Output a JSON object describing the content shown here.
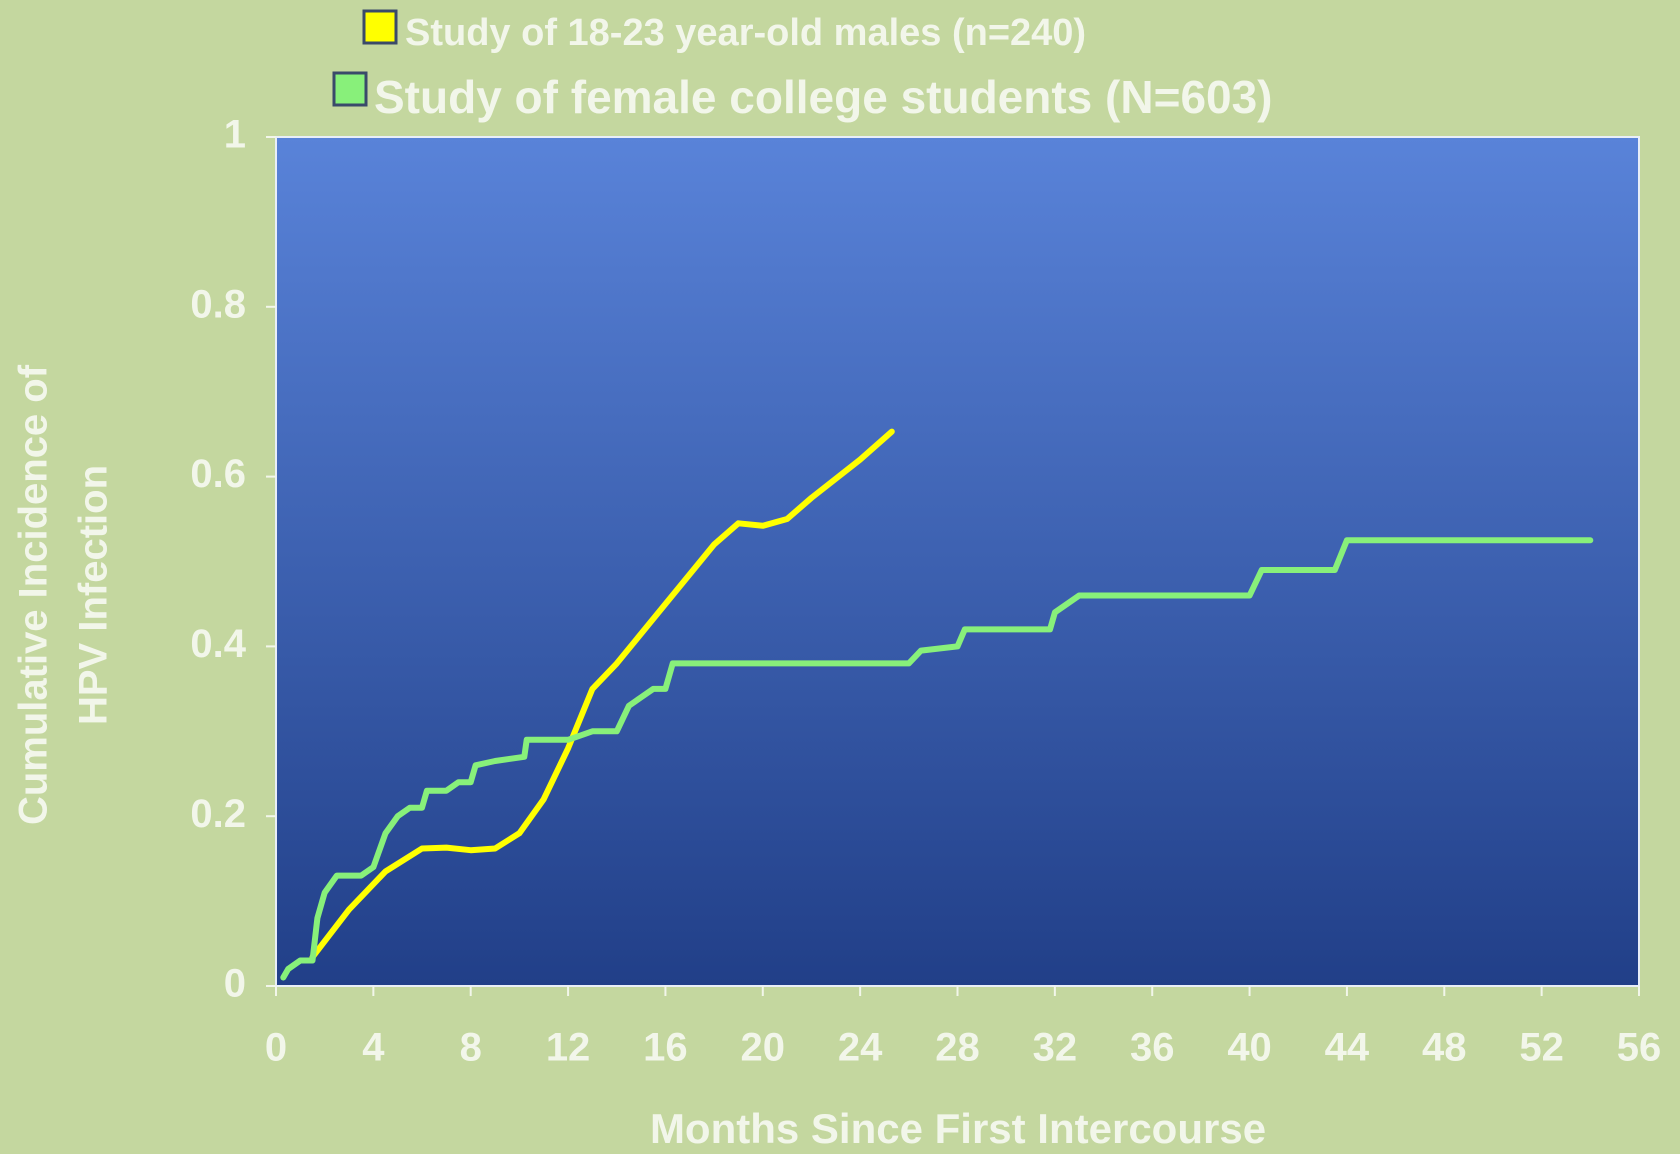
{
  "chart_data": {
    "type": "line",
    "xlabel": "Months Since First Intercourse",
    "ylabel_lines": [
      "Cumulative Incidence of",
      "HPV Infection"
    ],
    "xlim": [
      0,
      56
    ],
    "xticks": [
      0,
      4,
      8,
      12,
      16,
      20,
      24,
      28,
      32,
      36,
      40,
      44,
      48,
      52,
      56
    ],
    "ylim": [
      0,
      1
    ],
    "yticks": [
      0,
      0.2,
      0.4,
      0.6,
      0.8,
      1
    ],
    "legend": "top",
    "series": [
      {
        "name": "Study of 18-23 year-old males (n=240)",
        "color": "#ffff00",
        "x": [
          1.5,
          3,
          4.5,
          6,
          7,
          8,
          9,
          10,
          11,
          12,
          13,
          14,
          16,
          18,
          19,
          20,
          21,
          22,
          24,
          25.3
        ],
        "values": [
          0.034,
          0.09,
          0.135,
          0.162,
          0.163,
          0.16,
          0.162,
          0.18,
          0.22,
          0.28,
          0.35,
          0.38,
          0.45,
          0.52,
          0.545,
          0.542,
          0.55,
          0.575,
          0.62,
          0.653
        ]
      },
      {
        "name": "Study of female college students (N=603)",
        "color": "#88f07a",
        "x": [
          0.3,
          0.5,
          1,
          1.5,
          1.7,
          2,
          2.5,
          3.5,
          4,
          4.5,
          5,
          5.5,
          6,
          6.2,
          7,
          7.5,
          8,
          8.2,
          9,
          10.2,
          10.3,
          12,
          13,
          14,
          14.5,
          15,
          15.5,
          16,
          16.3,
          26,
          26.5,
          28,
          28.3,
          31.8,
          32,
          33,
          40,
          40.5,
          43.5,
          44,
          54
        ],
        "values": [
          0.01,
          0.02,
          0.03,
          0.03,
          0.08,
          0.11,
          0.13,
          0.13,
          0.14,
          0.18,
          0.2,
          0.21,
          0.21,
          0.23,
          0.23,
          0.24,
          0.24,
          0.26,
          0.265,
          0.27,
          0.29,
          0.29,
          0.3,
          0.3,
          0.33,
          0.34,
          0.35,
          0.35,
          0.38,
          0.38,
          0.395,
          0.4,
          0.42,
          0.42,
          0.44,
          0.46,
          0.46,
          0.49,
          0.49,
          0.525,
          0.525
        ]
      }
    ]
  }
}
